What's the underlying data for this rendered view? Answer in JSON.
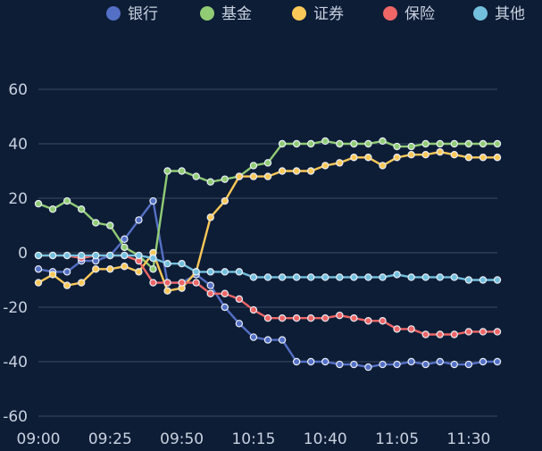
{
  "chart_data": {
    "type": "line",
    "title": "",
    "xlabel": "",
    "ylabel": "",
    "ylim": [
      -60,
      60
    ],
    "yticks": [
      60,
      40,
      20,
      0,
      -20,
      -40,
      -60
    ],
    "grid": true,
    "legend_position": "top",
    "x_tick_labels": [
      "09:00",
      "09:25",
      "09:50",
      "10:15",
      "10:40",
      "11:05",
      "11:30"
    ],
    "x_tick_step": 5,
    "categories": [
      "09:00",
      "09:05",
      "09:10",
      "09:15",
      "09:20",
      "09:25",
      "09:30",
      "09:35",
      "09:40",
      "09:45",
      "09:50",
      "09:55",
      "10:00",
      "10:05",
      "10:10",
      "10:15",
      "10:20",
      "10:25",
      "10:30",
      "10:35",
      "10:40",
      "10:45",
      "10:50",
      "10:55",
      "11:00",
      "11:05",
      "11:10",
      "11:15",
      "11:20",
      "11:25",
      "11:30",
      "11:35",
      "11:40"
    ],
    "series": [
      {
        "name": "银行",
        "color": "#5470c6",
        "values": [
          -6,
          -7,
          -7,
          -3,
          -3,
          -1,
          5,
          12,
          19,
          -11,
          -11,
          -8,
          -12,
          -20,
          -26,
          -31,
          -32,
          -32,
          -40,
          -40,
          -40,
          -41,
          -41,
          -42,
          -41,
          -41,
          -40,
          -41,
          -40,
          -41,
          -41,
          -40,
          -40
        ]
      },
      {
        "name": "基金",
        "color": "#91cc75",
        "values": [
          18,
          16,
          19,
          16,
          11,
          10,
          2,
          -1,
          -6,
          30,
          30,
          28,
          26,
          27,
          28,
          32,
          33,
          40,
          40,
          40,
          41,
          40,
          40,
          40,
          41,
          39,
          39,
          40,
          40,
          40,
          40,
          40,
          40
        ]
      },
      {
        "name": "证券",
        "color": "#fac858",
        "values": [
          -11,
          -8,
          -12,
          -11,
          -6,
          -6,
          -5,
          -7,
          0,
          -14,
          -13,
          -7,
          13,
          19,
          28,
          28,
          28,
          30,
          30,
          30,
          32,
          33,
          35,
          35,
          32,
          35,
          36,
          36,
          37,
          36,
          35,
          35,
          35
        ]
      },
      {
        "name": "保险",
        "color": "#ee6666",
        "values": [
          -1,
          -1,
          -1,
          -2,
          -1,
          -1,
          -1,
          -3,
          -11,
          -11,
          -11,
          -11,
          -15,
          -15,
          -17,
          -21,
          -24,
          -24,
          -24,
          -24,
          -24,
          -23,
          -24,
          -25,
          -25,
          -28,
          -28,
          -30,
          -30,
          -30,
          -29,
          -29,
          -29
        ]
      },
      {
        "name": "其他",
        "color": "#73c0de",
        "values": [
          -1,
          -1,
          -1,
          -1,
          -1,
          -1,
          -1,
          -1,
          -2,
          -4,
          -4,
          -7,
          -7,
          -7,
          -7,
          -9,
          -9,
          -9,
          -9,
          -9,
          -9,
          -9,
          -9,
          -9,
          -9,
          -8,
          -9,
          -9,
          -9,
          -9,
          -10,
          -10,
          -10
        ]
      }
    ]
  },
  "colors": {
    "background": "#0e1d36",
    "grid": "#3a4a63",
    "text": "#c7d1df"
  }
}
